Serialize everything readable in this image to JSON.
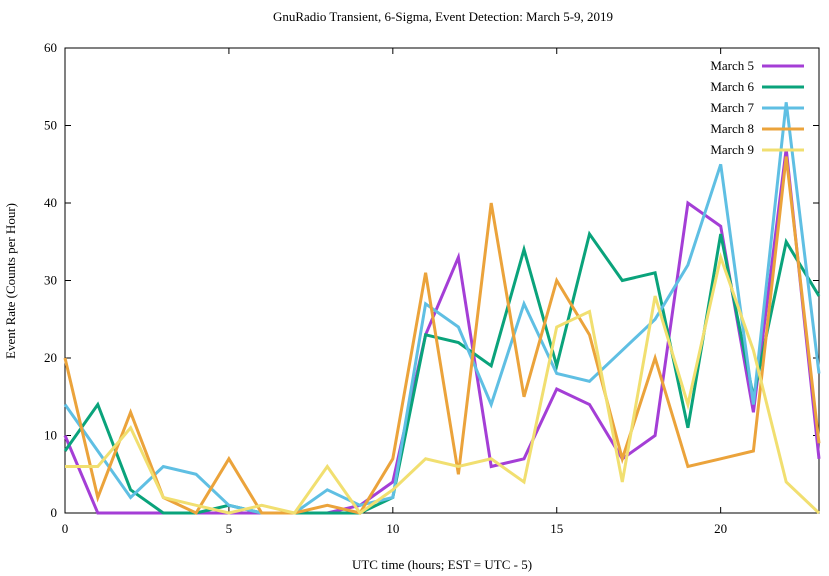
{
  "chart_data": {
    "type": "line",
    "title": "GnuRadio Transient, 6-Sigma, Event Detection: March 5-9, 2019",
    "xlabel": "UTC time (hours; EST = UTC - 5)",
    "ylabel": "Event Rate (Counts per Hour)",
    "xlim": [
      0,
      23
    ],
    "ylim": [
      0,
      60
    ],
    "xticks": [
      0,
      5,
      10,
      15,
      20
    ],
    "yticks": [
      0,
      10,
      20,
      30,
      40,
      50,
      60
    ],
    "grid": false,
    "legend_position": "top-right",
    "x": [
      0,
      1,
      2,
      3,
      4,
      5,
      6,
      7,
      8,
      9,
      10,
      11,
      12,
      13,
      14,
      15,
      16,
      17,
      18,
      19,
      20,
      21,
      22,
      23
    ],
    "series": [
      {
        "name": "March 5",
        "color": "#a43ed6",
        "values": [
          10,
          0,
          0,
          0,
          0,
          0,
          0,
          0,
          0,
          1,
          4,
          23,
          33,
          6,
          7,
          16,
          14,
          7,
          10,
          40,
          37,
          13,
          47,
          7
        ]
      },
      {
        "name": "March 6",
        "color": "#0aa37b",
        "values": [
          8,
          14,
          3,
          0,
          0,
          1,
          0,
          0,
          0,
          0,
          2,
          23,
          22,
          19,
          34,
          19,
          36,
          30,
          31,
          11,
          36,
          15,
          35,
          28
        ]
      },
      {
        "name": "March 7",
        "color": "#5fbfe3",
        "values": [
          14,
          8,
          2,
          6,
          5,
          1,
          0,
          0,
          3,
          1,
          2,
          27,
          24,
          14,
          27,
          18,
          17,
          21,
          25,
          32,
          45,
          14,
          53,
          18
        ]
      },
      {
        "name": "March 8",
        "color": "#eba33b",
        "values": [
          20,
          2,
          13,
          2,
          0,
          7,
          0,
          0,
          1,
          0,
          7,
          31,
          5,
          40,
          15,
          30,
          23,
          7,
          20,
          6,
          7,
          8,
          46,
          9
        ]
      },
      {
        "name": "March 9",
        "color": "#f1df70",
        "values": [
          6,
          6,
          11,
          2,
          1,
          0,
          1,
          0,
          6,
          0,
          3,
          7,
          6,
          7,
          4,
          24,
          26,
          4,
          28,
          14,
          33,
          21,
          4,
          0
        ]
      }
    ]
  }
}
